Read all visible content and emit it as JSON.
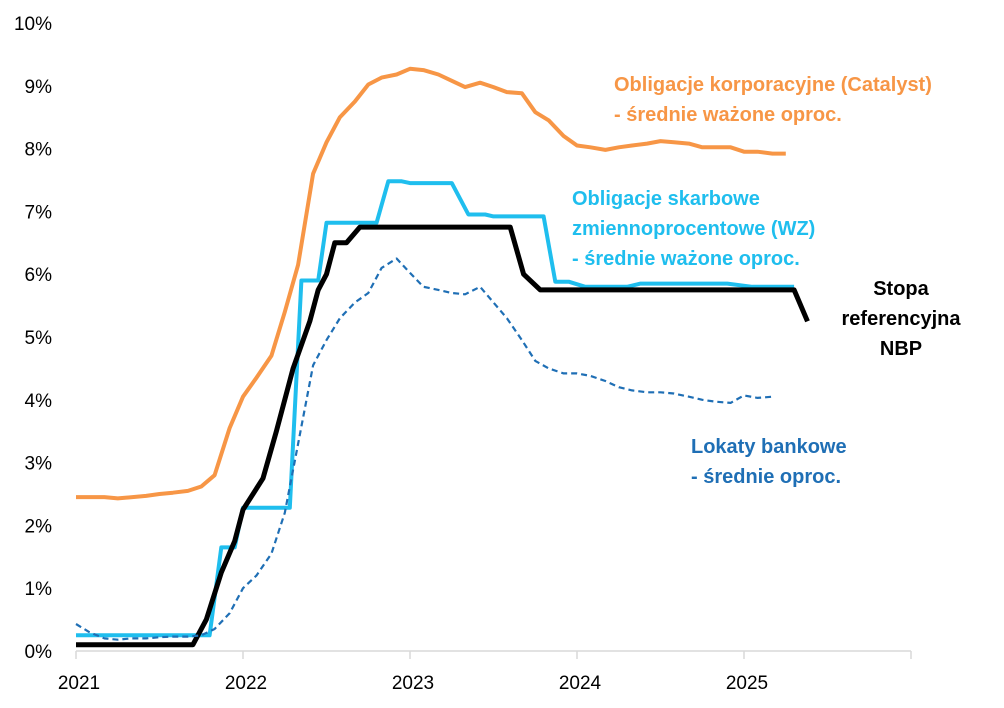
{
  "chart_data": {
    "type": "line",
    "title": "",
    "xlabel": "",
    "ylabel": "",
    "xlim": [
      2021.0,
      2026.0
    ],
    "ylim": [
      0,
      10
    ],
    "x_ticks": [
      2021,
      2022,
      2023,
      2024,
      2025
    ],
    "x_tick_labels": [
      "2021",
      "2022",
      "2023",
      "2024",
      "2025"
    ],
    "y_ticks": [
      0,
      1,
      2,
      3,
      4,
      5,
      6,
      7,
      8,
      9,
      10
    ],
    "y_tick_labels": [
      "0%",
      "1%",
      "2%",
      "3%",
      "4%",
      "5%",
      "6%",
      "7%",
      "8%",
      "9%",
      "10%"
    ],
    "grid": false,
    "series": [
      {
        "name": "Obligacje korporacyjne (Catalyst) - średnie ważone oproc.",
        "label_lines": [
          "Obligacje korporacyjne (Catalyst)",
          "- średnie ważone oproc."
        ],
        "color": "#F79646",
        "dash": "solid",
        "points": [
          [
            2021.0,
            2.45
          ],
          [
            2021.17,
            2.45
          ],
          [
            2021.25,
            2.43
          ],
          [
            2021.42,
            2.47
          ],
          [
            2021.5,
            2.5
          ],
          [
            2021.58,
            2.52
          ],
          [
            2021.67,
            2.55
          ],
          [
            2021.75,
            2.62
          ],
          [
            2021.83,
            2.8
          ],
          [
            2021.92,
            3.55
          ],
          [
            2022.0,
            4.05
          ],
          [
            2022.08,
            4.35
          ],
          [
            2022.17,
            4.7
          ],
          [
            2022.25,
            5.4
          ],
          [
            2022.33,
            6.15
          ],
          [
            2022.42,
            7.6
          ],
          [
            2022.5,
            8.1
          ],
          [
            2022.58,
            8.5
          ],
          [
            2022.67,
            8.75
          ],
          [
            2022.75,
            9.02
          ],
          [
            2022.83,
            9.13
          ],
          [
            2022.92,
            9.18
          ],
          [
            2023.0,
            9.27
          ],
          [
            2023.08,
            9.25
          ],
          [
            2023.17,
            9.18
          ],
          [
            2023.25,
            9.08
          ],
          [
            2023.33,
            8.98
          ],
          [
            2023.42,
            9.05
          ],
          [
            2023.5,
            8.98
          ],
          [
            2023.58,
            8.9
          ],
          [
            2023.67,
            8.88
          ],
          [
            2023.75,
            8.58
          ],
          [
            2023.83,
            8.45
          ],
          [
            2023.92,
            8.2
          ],
          [
            2024.0,
            8.05
          ],
          [
            2024.08,
            8.02
          ],
          [
            2024.17,
            7.98
          ],
          [
            2024.25,
            8.02
          ],
          [
            2024.33,
            8.05
          ],
          [
            2024.42,
            8.08
          ],
          [
            2024.5,
            8.12
          ],
          [
            2024.58,
            8.1
          ],
          [
            2024.67,
            8.08
          ],
          [
            2024.75,
            8.02
          ],
          [
            2024.83,
            8.02
          ],
          [
            2024.92,
            8.02
          ],
          [
            2025.0,
            7.95
          ],
          [
            2025.08,
            7.95
          ],
          [
            2025.17,
            7.92
          ],
          [
            2025.25,
            7.92
          ]
        ]
      },
      {
        "name": "Obligacje skarbowe zmiennoprocentowe (WZ) - średnie ważone oproc.",
        "label_lines": [
          "Obligacje skarbowe",
          "zmiennoprocentowe (WZ)",
          "- średnie ważone oproc."
        ],
        "color": "#1FBEEE",
        "dash": "solid",
        "points": [
          [
            2021.0,
            0.25
          ],
          [
            2021.8,
            0.25
          ],
          [
            2021.87,
            1.65
          ],
          [
            2021.95,
            1.65
          ],
          [
            2022.0,
            2.28
          ],
          [
            2022.28,
            2.28
          ],
          [
            2022.35,
            5.9
          ],
          [
            2022.45,
            5.9
          ],
          [
            2022.5,
            6.82
          ],
          [
            2022.8,
            6.82
          ],
          [
            2022.87,
            7.48
          ],
          [
            2022.95,
            7.48
          ],
          [
            2023.0,
            7.45
          ],
          [
            2023.25,
            7.45
          ],
          [
            2023.35,
            6.95
          ],
          [
            2023.45,
            6.95
          ],
          [
            2023.5,
            6.92
          ],
          [
            2023.8,
            6.92
          ],
          [
            2023.87,
            5.88
          ],
          [
            2023.95,
            5.88
          ],
          [
            2024.05,
            5.8
          ],
          [
            2024.3,
            5.8
          ],
          [
            2024.38,
            5.85
          ],
          [
            2024.9,
            5.85
          ],
          [
            2025.05,
            5.8
          ],
          [
            2025.3,
            5.8
          ]
        ]
      },
      {
        "name": "Stopa referencyjna NBP",
        "label_lines": [
          "Stopa",
          "referencyjna",
          "NBP"
        ],
        "color": "#000000",
        "dash": "solid",
        "points": [
          [
            2021.0,
            0.1
          ],
          [
            2021.7,
            0.1
          ],
          [
            2021.78,
            0.5
          ],
          [
            2021.87,
            1.25
          ],
          [
            2021.95,
            1.75
          ],
          [
            2022.0,
            2.25
          ],
          [
            2022.12,
            2.75
          ],
          [
            2022.2,
            3.5
          ],
          [
            2022.3,
            4.5
          ],
          [
            2022.4,
            5.25
          ],
          [
            2022.45,
            5.75
          ],
          [
            2022.5,
            6.0
          ],
          [
            2022.55,
            6.5
          ],
          [
            2022.62,
            6.5
          ],
          [
            2022.7,
            6.75
          ],
          [
            2023.6,
            6.75
          ],
          [
            2023.68,
            6.0
          ],
          [
            2023.78,
            5.75
          ],
          [
            2025.3,
            5.75
          ],
          [
            2025.38,
            5.25
          ]
        ]
      },
      {
        "name": "Lokaty bankowe - średnie oproc.",
        "label_lines": [
          "Lokaty bankowe",
          "- średnie oproc."
        ],
        "color": "#1F6FB5",
        "dash": "dashed",
        "points": [
          [
            2021.0,
            0.43
          ],
          [
            2021.08,
            0.3
          ],
          [
            2021.17,
            0.2
          ],
          [
            2021.25,
            0.18
          ],
          [
            2021.33,
            0.2
          ],
          [
            2021.42,
            0.2
          ],
          [
            2021.5,
            0.22
          ],
          [
            2021.58,
            0.23
          ],
          [
            2021.67,
            0.23
          ],
          [
            2021.75,
            0.25
          ],
          [
            2021.83,
            0.35
          ],
          [
            2021.92,
            0.6
          ],
          [
            2022.0,
            1.0
          ],
          [
            2022.08,
            1.2
          ],
          [
            2022.17,
            1.55
          ],
          [
            2022.25,
            2.2
          ],
          [
            2022.33,
            3.3
          ],
          [
            2022.42,
            4.55
          ],
          [
            2022.5,
            4.95
          ],
          [
            2022.58,
            5.3
          ],
          [
            2022.67,
            5.55
          ],
          [
            2022.75,
            5.7
          ],
          [
            2022.83,
            6.1
          ],
          [
            2022.92,
            6.25
          ],
          [
            2023.0,
            6.02
          ],
          [
            2023.08,
            5.8
          ],
          [
            2023.17,
            5.75
          ],
          [
            2023.25,
            5.7
          ],
          [
            2023.33,
            5.68
          ],
          [
            2023.42,
            5.8
          ],
          [
            2023.5,
            5.55
          ],
          [
            2023.58,
            5.3
          ],
          [
            2023.67,
            4.95
          ],
          [
            2023.75,
            4.62
          ],
          [
            2023.83,
            4.5
          ],
          [
            2023.92,
            4.42
          ],
          [
            2024.0,
            4.42
          ],
          [
            2024.08,
            4.38
          ],
          [
            2024.17,
            4.3
          ],
          [
            2024.25,
            4.2
          ],
          [
            2024.33,
            4.15
          ],
          [
            2024.42,
            4.12
          ],
          [
            2024.5,
            4.12
          ],
          [
            2024.58,
            4.1
          ],
          [
            2024.67,
            4.05
          ],
          [
            2024.75,
            4.0
          ],
          [
            2024.83,
            3.97
          ],
          [
            2024.92,
            3.95
          ],
          [
            2025.0,
            4.07
          ],
          [
            2025.08,
            4.03
          ],
          [
            2025.17,
            4.05
          ]
        ]
      }
    ]
  }
}
